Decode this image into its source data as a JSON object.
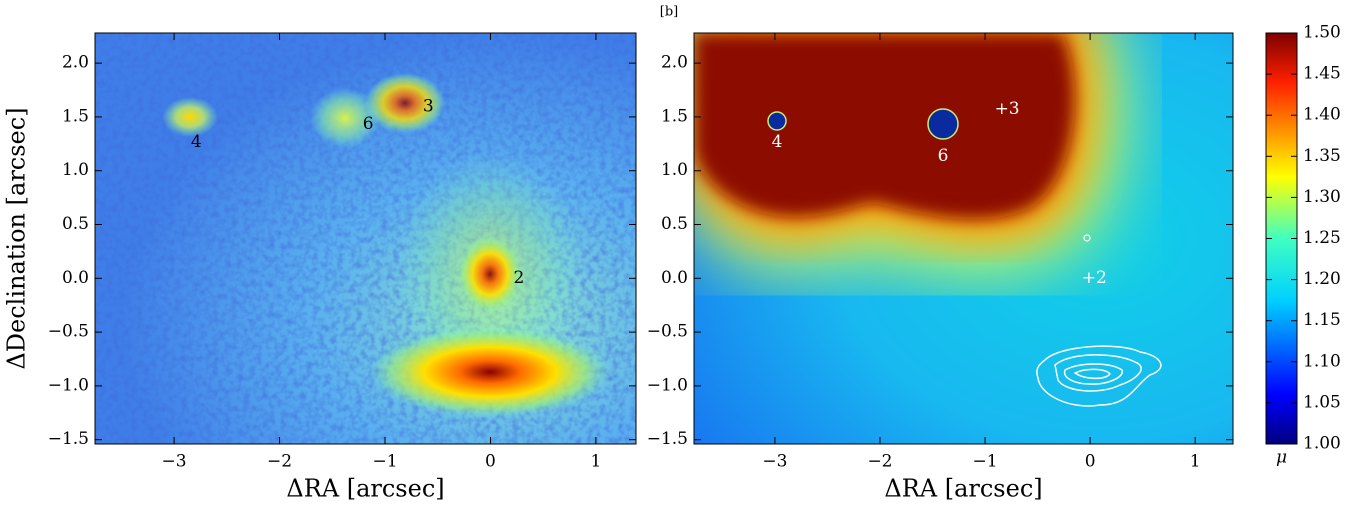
{
  "chart_data": [
    {
      "type": "image",
      "xlabel": "ΔRA  [arcsec]",
      "ylabel": "ΔDeclination  [arcsec]",
      "xlim": [
        -3.75,
        1.38
      ],
      "ylim": [
        -1.54,
        2.28
      ],
      "xticks": [
        {
          "value": -3,
          "label": "−3"
        },
        {
          "value": -2,
          "label": "−2"
        },
        {
          "value": -1,
          "label": "−1"
        },
        0,
        1
      ],
      "yticks": [
        {
          "value": -1.5,
          "label": "−1.5"
        },
        {
          "value": -1.0,
          "label": "−1.0"
        },
        {
          "value": -0.5,
          "label": "−0.5"
        },
        {
          "value": 0.0,
          "label": "0.0"
        },
        0.5,
        {
          "value": 1.0,
          "label": "1.0"
        },
        1.5,
        {
          "value": 2.0,
          "label": "2.0"
        }
      ],
      "annotations": [
        {
          "text": "4",
          "x": -2.79,
          "y": 1.26
        },
        {
          "text": "6",
          "x": -1.16,
          "y": 1.43
        },
        {
          "text": "3",
          "x": -0.59,
          "y": 1.59
        },
        {
          "text": "2",
          "x": 0.27,
          "y": 0.0
        }
      ]
    },
    {
      "type": "image",
      "title": "[b]",
      "xlabel": "ΔRA  [arcsec]",
      "xlim": [
        -3.77,
        1.36
      ],
      "ylim": [
        -1.54,
        2.28
      ],
      "xticks": [
        {
          "value": -3,
          "label": "−3"
        },
        {
          "value": -2,
          "label": "−2"
        },
        {
          "value": -1,
          "label": "−1"
        },
        0,
        1
      ],
      "yticks": [
        {
          "value": -1.5,
          "label": "−1.5"
        },
        {
          "value": -1.0,
          "label": "−1.0"
        },
        {
          "value": -0.5,
          "label": "−0.5"
        },
        {
          "value": 0.0,
          "label": "0.0"
        },
        0.5,
        {
          "value": 1.0,
          "label": "1.0"
        },
        1.5,
        {
          "value": 2.0,
          "label": "2.0"
        }
      ],
      "annotations": [
        {
          "text": "4",
          "x": -2.98,
          "y": 1.26
        },
        {
          "text": "6",
          "x": -1.4,
          "y": 1.13
        },
        {
          "text": "+3",
          "x": -0.79,
          "y": 1.57
        },
        {
          "text": "+2",
          "x": 0.04,
          "y": 0.0
        }
      ],
      "colorbar": {
        "label": "μ",
        "lim": [
          1.0,
          1.5
        ],
        "ticks": [
          {
            "value": 1.0,
            "label": "1.00"
          },
          1.05,
          {
            "value": 1.1,
            "label": "1.10"
          },
          1.15,
          {
            "value": 1.2,
            "label": "1.20"
          },
          1.25,
          {
            "value": 1.3,
            "label": "1.30"
          },
          1.35,
          {
            "value": 1.4,
            "label": "1.40"
          },
          1.45,
          {
            "value": 1.5,
            "label": "1.50"
          }
        ]
      }
    }
  ]
}
